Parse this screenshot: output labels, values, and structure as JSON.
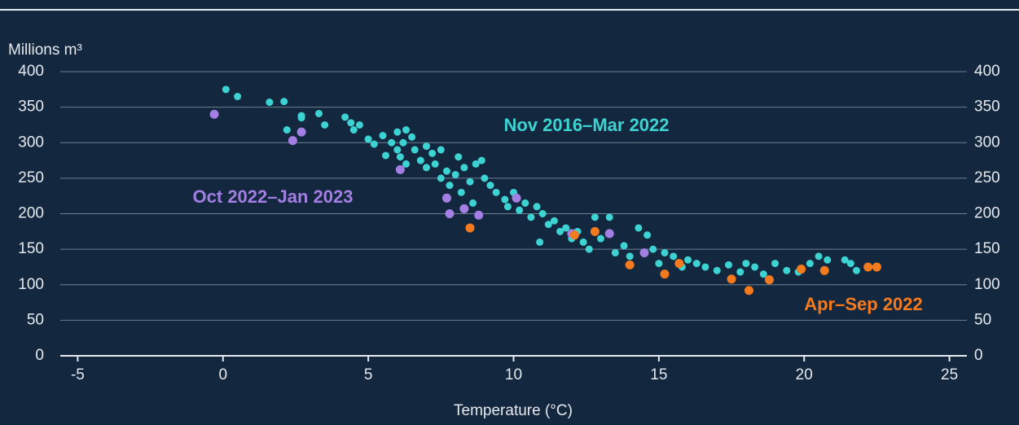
{
  "chart_data": {
    "type": "scatter",
    "y_label": "Millions m³",
    "x_label": "Temperature (°C)",
    "xlim": [
      -5.6,
      25.6
    ],
    "xticks": [
      -5,
      0,
      5,
      10,
      15,
      20,
      25
    ],
    "ylim": [
      0,
      400
    ],
    "yticks": [
      0,
      50,
      100,
      150,
      200,
      250,
      300,
      350,
      400
    ],
    "y2lim": [
      0,
      400
    ],
    "y2ticks": [
      0,
      50,
      100,
      150,
      200,
      250,
      300,
      350,
      400
    ],
    "grid": true,
    "series": [
      {
        "name": "Nov 2016–Mar 2022",
        "color": "#3dd3d3",
        "x": [
          0.1,
          0.5,
          1.6,
          2.1,
          2.2,
          2.7,
          2.7,
          3.3,
          3.5,
          4.2,
          4.4,
          4.5,
          4.7,
          5.0,
          5.2,
          5.5,
          5.6,
          5.8,
          6.0,
          6.0,
          6.1,
          6.2,
          6.3,
          6.3,
          6.5,
          6.6,
          6.8,
          7.0,
          7.0,
          7.2,
          7.3,
          7.5,
          7.5,
          7.7,
          7.8,
          8.0,
          8.1,
          8.2,
          8.3,
          8.5,
          8.6,
          8.7,
          8.9,
          9.0,
          9.2,
          9.4,
          9.7,
          9.8,
          10.0,
          10.2,
          10.4,
          10.6,
          10.8,
          10.9,
          11.0,
          11.2,
          11.4,
          11.6,
          11.8,
          12.0,
          12.2,
          12.4,
          12.6,
          12.8,
          13.0,
          13.3,
          13.5,
          13.8,
          14.0,
          14.3,
          14.6,
          14.8,
          15.0,
          15.2,
          15.5,
          15.8,
          16.0,
          16.3,
          16.6,
          17.0,
          17.4,
          17.8,
          18.0,
          18.3,
          18.6,
          19.0,
          19.4,
          19.8,
          20.2,
          20.5,
          20.8,
          21.4,
          21.6,
          21.8
        ],
        "values": [
          375,
          365,
          357,
          358,
          318,
          335,
          338,
          341,
          325,
          336,
          328,
          318,
          325,
          305,
          298,
          310,
          282,
          300,
          315,
          290,
          280,
          300,
          318,
          270,
          308,
          290,
          275,
          295,
          265,
          285,
          270,
          290,
          250,
          260,
          240,
          255,
          280,
          230,
          265,
          245,
          215,
          270,
          275,
          250,
          240,
          230,
          220,
          210,
          230,
          205,
          215,
          195,
          210,
          160,
          200,
          185,
          190,
          175,
          180,
          165,
          175,
          160,
          150,
          195,
          165,
          195,
          145,
          155,
          140,
          180,
          170,
          150,
          130,
          145,
          140,
          125,
          135,
          130,
          125,
          120,
          128,
          118,
          130,
          125,
          115,
          130,
          120,
          118,
          130,
          140,
          135,
          135,
          130,
          120
        ]
      },
      {
        "name": "Oct 2022–Jan 2023",
        "color": "#a37fe3",
        "x": [
          -0.3,
          2.4,
          2.7,
          6.1,
          7.7,
          7.8,
          8.3,
          8.8,
          10.1,
          12.0,
          13.3,
          14.5
        ],
        "values": [
          340,
          303,
          315,
          262,
          222,
          200,
          207,
          198,
          222,
          172,
          172,
          145
        ]
      },
      {
        "name": "Apr–Sep 2022",
        "color": "#f57a1e",
        "x": [
          8.5,
          12.1,
          12.8,
          14.0,
          15.2,
          15.7,
          17.5,
          18.1,
          18.8,
          19.9,
          20.7,
          22.2,
          22.5
        ],
        "values": [
          180,
          170,
          175,
          128,
          115,
          130,
          108,
          92,
          107,
          122,
          120,
          125,
          125
        ]
      }
    ]
  }
}
